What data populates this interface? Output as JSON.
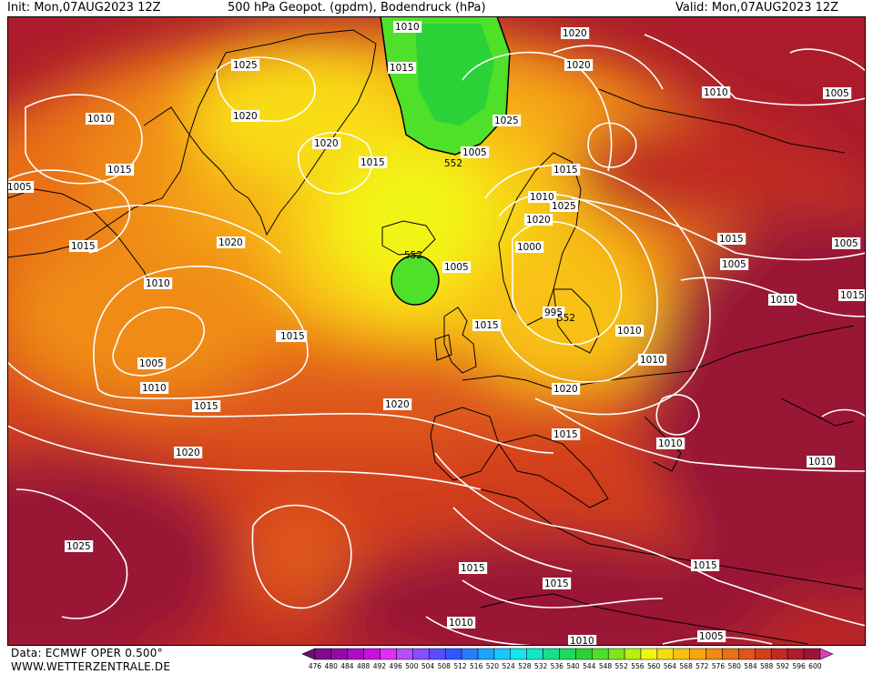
{
  "header": {
    "init": "Init: Mon,07AUG2023 12Z",
    "title": "500 hPa Geopot. (gpdm), Bodendruck (hPa)",
    "valid": "Valid: Mon,07AUG2023 12Z"
  },
  "footer": {
    "data_source": "Data: ECMWF OPER 0.500°",
    "website": "WWW.WETTERZENTRALE.DE"
  },
  "legend": {
    "ticks": [
      "476",
      "480",
      "484",
      "488",
      "492",
      "496",
      "500",
      "504",
      "508",
      "512",
      "516",
      "520",
      "524",
      "528",
      "532",
      "536",
      "540",
      "544",
      "548",
      "552",
      "556",
      "560",
      "564",
      "568",
      "572",
      "576",
      "580",
      "584",
      "588",
      "592",
      "596",
      "600"
    ],
    "colors": [
      "#6b0f6b",
      "#7e0b8a",
      "#940aa6",
      "#ad0cc4",
      "#c90fe0",
      "#e22df5",
      "#b64dff",
      "#8a4dff",
      "#5a4dff",
      "#3355ff",
      "#2a7cff",
      "#1fa3ff",
      "#19c7ff",
      "#13e6f0",
      "#14e6c2",
      "#18e08c",
      "#1fd95c",
      "#2ad237",
      "#4fe02a",
      "#7ee61f",
      "#b6f014",
      "#f2f514",
      "#f8dc12",
      "#f8c112",
      "#f5a712",
      "#f08c14",
      "#e87016",
      "#de561a",
      "#d13e1e",
      "#c02a24",
      "#ac1c2c",
      "#9a1435",
      "#e040c0"
    ]
  },
  "isobar_labels": [
    "1010",
    "1015",
    "1025",
    "1020",
    "1010",
    "1015",
    "1020",
    "1020",
    "1025",
    "1020",
    "1015",
    "1010",
    "1005",
    "1010",
    "1015",
    "1005",
    "1010",
    "1020",
    "1015",
    "1005",
    "1010",
    "1005",
    "1010",
    "1020",
    "1025",
    "1015",
    "1005",
    "1015",
    "1000",
    "1005",
    "995",
    "1015",
    "1015",
    "1010",
    "1015",
    "1010",
    "1005",
    "1020",
    "1010",
    "1015",
    "1010",
    "1020",
    "1020",
    "1015",
    "1025",
    "1015",
    "1015",
    "1015",
    "1010",
    "1010",
    "1010",
    "1005"
  ],
  "geopotential_labels": [
    "552",
    "552",
    "552"
  ]
}
